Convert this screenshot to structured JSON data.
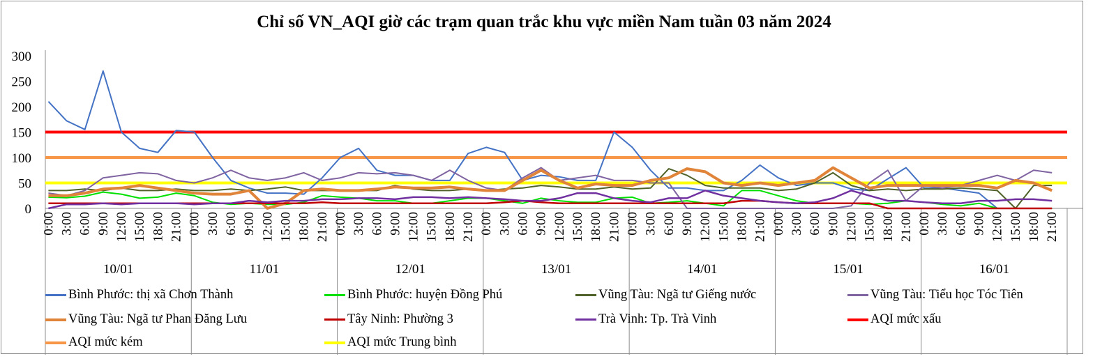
{
  "chart_data": {
    "type": "line",
    "title": "Chỉ số VN_AQI giờ các trạm quan trắc khu vực miền Nam tuần 03 năm 2024",
    "xlabel": "",
    "ylabel": "",
    "ylim": [
      0,
      300
    ],
    "yticks": [
      "0",
      "50",
      "100",
      "150",
      "200",
      "250",
      "300"
    ],
    "grid": false,
    "legend_position": "bottom",
    "days": [
      "10/01",
      "11/01",
      "12/01",
      "13/01",
      "14/01",
      "15/01",
      "16/01"
    ],
    "hour_labels": [
      "0:00",
      "3:00",
      "6:00",
      "9:00",
      "12:00",
      "15:00",
      "18:00",
      "21:00"
    ],
    "sampling": "3-hourly (values at 0:00,3:00,...,21:00 each day)",
    "series": [
      {
        "name": "Bình Phước: thị xã Chơn Thành",
        "color": "#4472c4",
        "width": 2,
        "values": [
          210,
          172,
          155,
          270,
          150,
          118,
          110,
          153,
          150,
          100,
          55,
          40,
          30,
          30,
          28,
          60,
          100,
          118,
          75,
          65,
          65,
          55,
          55,
          108,
          120,
          110,
          55,
          65,
          62,
          55,
          55,
          150,
          120,
          75,
          40,
          40,
          35,
          35,
          55,
          85,
          60,
          45,
          50,
          50,
          38,
          35,
          58,
          80,
          40,
          40,
          35,
          30,
          0,
          0,
          0,
          0
        ]
      },
      {
        "name": "Bình Phước: huyện Đồng Phú",
        "color": "#00e000",
        "width": 2,
        "values": [
          22,
          21,
          24,
          32,
          28,
          20,
          22,
          30,
          25,
          12,
          8,
          10,
          8,
          8,
          12,
          25,
          22,
          20,
          15,
          15,
          10,
          10,
          15,
          20,
          20,
          15,
          10,
          20,
          15,
          12,
          12,
          20,
          22,
          10,
          12,
          15,
          10,
          5,
          35,
          35,
          25,
          15,
          10,
          10,
          10,
          8,
          10,
          15,
          12,
          8,
          5,
          10,
          0,
          0,
          0,
          0
        ]
      },
      {
        "name": "Vũng Tàu: Ngã tư Giếng nước",
        "color": "#4f6228",
        "width": 2,
        "values": [
          35,
          35,
          38,
          35,
          40,
          35,
          35,
          38,
          35,
          35,
          38,
          35,
          38,
          42,
          35,
          35,
          35,
          35,
          35,
          45,
          38,
          35,
          35,
          38,
          35,
          38,
          40,
          45,
          42,
          38,
          38,
          42,
          38,
          40,
          78,
          65,
          45,
          40,
          40,
          40,
          35,
          38,
          50,
          70,
          45,
          35,
          38,
          35,
          38,
          38,
          40,
          38,
          35,
          0,
          45,
          45
        ]
      },
      {
        "name": "Vũng Tàu: Tiểu học Tóc Tiên",
        "color": "#8064a2",
        "width": 2,
        "values": [
          30,
          25,
          35,
          60,
          65,
          70,
          68,
          55,
          50,
          60,
          75,
          60,
          55,
          60,
          70,
          55,
          60,
          70,
          68,
          70,
          65,
          55,
          75,
          55,
          40,
          35,
          60,
          80,
          55,
          60,
          65,
          55,
          55,
          50,
          50,
          0,
          0,
          0,
          0,
          0,
          0,
          0,
          0,
          0,
          5,
          50,
          75,
          15,
          45,
          40,
          45,
          55,
          65,
          55,
          75,
          70
        ]
      },
      {
        "name": "Vũng Tàu: Ngã tư Phan Đăng Lưu",
        "color": "#e0843a",
        "width": 4,
        "values": [
          25,
          25,
          30,
          38,
          40,
          45,
          40,
          35,
          30,
          28,
          28,
          35,
          0,
          10,
          35,
          38,
          35,
          35,
          38,
          42,
          40,
          40,
          42,
          38,
          35,
          35,
          55,
          75,
          55,
          40,
          48,
          45,
          45,
          55,
          60,
          78,
          72,
          50,
          45,
          50,
          45,
          50,
          55,
          80,
          60,
          40,
          45,
          45,
          45,
          45,
          45,
          45,
          40,
          55,
          50,
          35
        ]
      },
      {
        "name": "Tây Ninh: Phường 3",
        "color": "#c00000",
        "width": 2.5,
        "values": [
          10,
          10,
          10,
          10,
          10,
          10,
          10,
          10,
          10,
          10,
          10,
          10,
          10,
          10,
          10,
          12,
          10,
          10,
          10,
          10,
          10,
          10,
          10,
          10,
          10,
          12,
          15,
          12,
          10,
          10,
          10,
          10,
          10,
          10,
          10,
          10,
          10,
          10,
          15,
          15,
          12,
          10,
          10,
          10,
          10,
          10,
          0,
          0,
          0,
          0,
          0,
          0,
          0,
          0,
          0,
          0
        ]
      },
      {
        "name": "Trà Vinh: Tp. Trà Vinh",
        "color": "#7030a0",
        "width": 2.5,
        "values": [
          0,
          8,
          8,
          10,
          8,
          10,
          10,
          10,
          8,
          10,
          10,
          15,
          12,
          15,
          15,
          18,
          18,
          20,
          20,
          18,
          22,
          22,
          20,
          22,
          20,
          18,
          15,
          15,
          20,
          30,
          30,
          20,
          15,
          12,
          20,
          20,
          35,
          25,
          20,
          15,
          12,
          10,
          12,
          20,
          35,
          25,
          15,
          15,
          12,
          10,
          10,
          15,
          15,
          18,
          18,
          15
        ]
      },
      {
        "name": "AQI mức xấu",
        "color": "#ff0000",
        "width": 4,
        "constant": 150
      },
      {
        "name": "AQI mức kém",
        "color": "#f79646",
        "width": 4,
        "constant": 100
      },
      {
        "name": "AQI mức Trung bình",
        "color": "#ffff00",
        "width": 4,
        "constant": 50
      }
    ]
  }
}
